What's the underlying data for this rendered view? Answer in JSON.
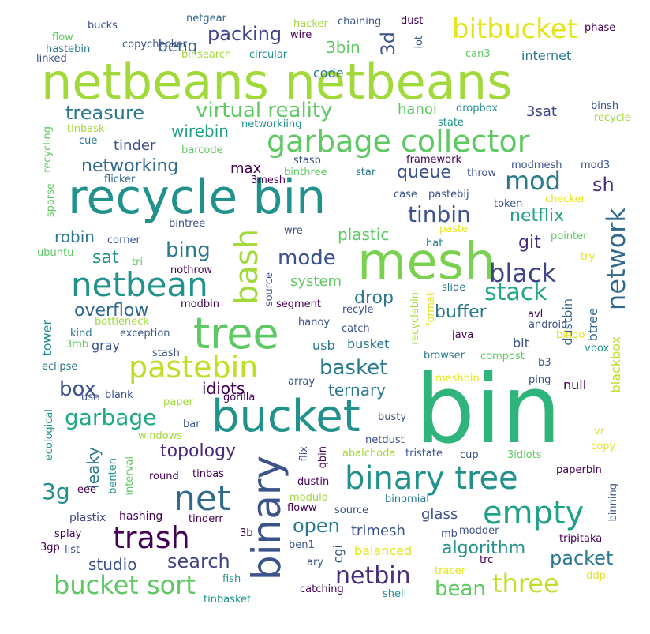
{
  "colors": {
    "background": "#ffffff",
    "palette": {
      "yellow_green": "#a2d93a",
      "green": "#5ec962",
      "teal_green": "#2fb47c",
      "teal": "#21918c",
      "blue": "#3b528b",
      "purple": "#440154"
    }
  },
  "words": [
    {
      "text": "netbeans netbeans",
      "color": "#a2d93a"
    },
    {
      "text": "bin",
      "color": "#2fb47c"
    },
    {
      "text": "recycle bin",
      "color": "#21918c"
    },
    {
      "text": "mesh",
      "color": "#7ad151"
    },
    {
      "text": "tree",
      "color": "#5ec962"
    },
    {
      "text": "bucket",
      "color": "#21918c"
    },
    {
      "text": "binary",
      "color": "#3b528b"
    },
    {
      "text": "binary tree",
      "color": "#21918c"
    },
    {
      "text": "netbean",
      "color": "#21918c"
    },
    {
      "text": "garbage collector",
      "color": "#5ec962"
    },
    {
      "text": "bitbucket",
      "color": "#e5e419"
    },
    {
      "text": "pastebin",
      "color": "#bddf26"
    },
    {
      "text": "net",
      "color": "#31688e"
    },
    {
      "text": "empty",
      "color": "#1fa187"
    },
    {
      "text": "bash",
      "color": "#a2d93a"
    },
    {
      "text": "trash",
      "color": "#440154"
    },
    {
      "text": "bucket sort",
      "color": "#5ec962"
    },
    {
      "text": "network",
      "color": "#31688e"
    },
    {
      "text": "three",
      "color": "#bddf26"
    },
    {
      "text": "black",
      "color": "#414487"
    },
    {
      "text": "stack",
      "color": "#22a884"
    },
    {
      "text": "mod",
      "color": "#2a788e"
    },
    {
      "text": "netbin",
      "color": "#472d7b"
    },
    {
      "text": "virtual reality",
      "color": "#5ec962"
    },
    {
      "text": "basket",
      "color": "#2a788e"
    },
    {
      "text": "garbage",
      "color": "#22a884"
    },
    {
      "text": "mode",
      "color": "#3b528b"
    },
    {
      "text": "tinbin",
      "color": "#3b528b"
    },
    {
      "text": "bean",
      "color": "#5ec962"
    },
    {
      "text": "packet",
      "color": "#2a788e"
    },
    {
      "text": "topology",
      "color": "#482878"
    },
    {
      "text": "packing",
      "color": "#414487"
    },
    {
      "text": "treasure",
      "color": "#2a788e"
    },
    {
      "text": "networking",
      "color": "#31688e"
    },
    {
      "text": "bing",
      "color": "#2a788e"
    },
    {
      "text": "git",
      "color": "#472d7b"
    },
    {
      "text": "netflix",
      "color": "#1fa187"
    },
    {
      "text": "box",
      "color": "#3b528b"
    },
    {
      "text": "3g",
      "color": "#21918c"
    },
    {
      "text": "search",
      "color": "#414487"
    },
    {
      "text": "open",
      "color": "#2a788e"
    },
    {
      "text": "algorithm",
      "color": "#21918c"
    },
    {
      "text": "studio",
      "color": "#3b528b"
    },
    {
      "text": "overflow",
      "color": "#31688e"
    },
    {
      "text": "drop",
      "color": "#2a788e"
    },
    {
      "text": "buffer",
      "color": "#2a788e"
    },
    {
      "text": "sh",
      "color": "#472d7b"
    },
    {
      "text": "queue",
      "color": "#3b528b"
    },
    {
      "text": "robin",
      "color": "#2a788e"
    },
    {
      "text": "sat",
      "color": "#21918c"
    },
    {
      "text": "plastic",
      "color": "#5ec962"
    },
    {
      "text": "system",
      "color": "#5ec962"
    },
    {
      "text": "idiots",
      "color": "#440154"
    },
    {
      "text": "ternary",
      "color": "#2a788e"
    },
    {
      "text": "wirebin",
      "color": "#1fa187"
    },
    {
      "text": "tinder",
      "color": "#3b528b"
    },
    {
      "text": "max",
      "color": "#440154"
    },
    {
      "text": "3d",
      "color": "#3b528b"
    },
    {
      "text": "3bin",
      "color": "#5ec962"
    },
    {
      "text": "benq",
      "color": "#31688e"
    },
    {
      "text": "hanoi",
      "color": "#5ec962"
    },
    {
      "text": "3sat",
      "color": "#414487"
    },
    {
      "text": "code",
      "color": "#2a788e"
    },
    {
      "text": "internet",
      "color": "#2a788e"
    },
    {
      "text": "leaky",
      "color": "#2a788e"
    },
    {
      "text": "glass",
      "color": "#3b528b"
    },
    {
      "text": "trimesh",
      "color": "#3b528b"
    },
    {
      "text": "balanced",
      "color": "#e5e419"
    },
    {
      "text": "cgi",
      "color": "#3b528b"
    },
    {
      "text": "dustbin",
      "color": "#31688e"
    },
    {
      "text": "blackbox",
      "color": "#bddf26"
    },
    {
      "text": "btree",
      "color": "#31688e"
    },
    {
      "text": "busket",
      "color": "#2a788e"
    },
    {
      "text": "usb",
      "color": "#2a788e"
    },
    {
      "text": "bit",
      "color": "#3b528b"
    },
    {
      "text": "gray",
      "color": "#3b528b"
    },
    {
      "text": "tower",
      "color": "#21918c"
    },
    {
      "text": "null",
      "color": "#440154"
    },
    {
      "text": "hashing",
      "color": "#440154"
    },
    {
      "text": "plastix",
      "color": "#414487"
    },
    {
      "text": "tinbask",
      "color": "#a2d93a"
    },
    {
      "text": "recycle",
      "color": "#a2d93a"
    },
    {
      "text": "netgear",
      "color": "#31688e"
    },
    {
      "text": "hacker",
      "color": "#a2d93a"
    },
    {
      "text": "chaining",
      "color": "#3b528b"
    },
    {
      "text": "dust",
      "color": "#440154"
    },
    {
      "text": "phase",
      "color": "#440154"
    },
    {
      "text": "bucks",
      "color": "#3b528b"
    },
    {
      "text": "flow",
      "color": "#5ec962"
    },
    {
      "text": "copychecker",
      "color": "#3b528b"
    },
    {
      "text": "wire",
      "color": "#440154"
    },
    {
      "text": "iot",
      "color": "#3b528b"
    },
    {
      "text": "hastebin",
      "color": "#2a788e"
    },
    {
      "text": "linked",
      "color": "#3b528b"
    },
    {
      "text": "binsearch",
      "color": "#a2d93a"
    },
    {
      "text": "circular",
      "color": "#21918c"
    },
    {
      "text": "can3",
      "color": "#5ec962"
    },
    {
      "text": "dropbox",
      "color": "#21918c"
    },
    {
      "text": "binsh",
      "color": "#3b528b"
    },
    {
      "text": "state",
      "color": "#21918c"
    },
    {
      "text": "networkiing",
      "color": "#21918c"
    },
    {
      "text": "framework",
      "color": "#440154"
    },
    {
      "text": "stasb",
      "color": "#3b528b"
    },
    {
      "text": "barcode",
      "color": "#5ec962"
    },
    {
      "text": "binthree",
      "color": "#5ec962"
    },
    {
      "text": "star",
      "color": "#2a788e"
    },
    {
      "text": "throw",
      "color": "#3b528b"
    },
    {
      "text": "modmesh",
      "color": "#3b528b"
    },
    {
      "text": "mod3",
      "color": "#3b528b"
    },
    {
      "text": "cue",
      "color": "#2a788e"
    },
    {
      "text": "flicker",
      "color": "#31688e"
    },
    {
      "text": "3mesh",
      "color": "#440154"
    },
    {
      "text": "recycling",
      "color": "#5ec962"
    },
    {
      "text": "sparse",
      "color": "#5ec962"
    },
    {
      "text": "case",
      "color": "#3b528b"
    },
    {
      "text": "pastebij",
      "color": "#3b528b"
    },
    {
      "text": "token",
      "color": "#3b528b"
    },
    {
      "text": "checker",
      "color": "#e5e419"
    },
    {
      "text": "bintree",
      "color": "#3b528b"
    },
    {
      "text": "wre",
      "color": "#3b528b"
    },
    {
      "text": "paste",
      "color": "#e5e419"
    },
    {
      "text": "hat",
      "color": "#2a788e"
    },
    {
      "text": "pointer",
      "color": "#5ec962"
    },
    {
      "text": "corner",
      "color": "#3b528b"
    },
    {
      "text": "tri",
      "color": "#5ec962"
    },
    {
      "text": "try",
      "color": "#e5e419"
    },
    {
      "text": "ubuntu",
      "color": "#5ec962"
    },
    {
      "text": "nothrow",
      "color": "#440154"
    },
    {
      "text": "source",
      "color": "#3b528b"
    },
    {
      "text": "segment",
      "color": "#440154"
    },
    {
      "text": "recyclebin",
      "color": "#a2d93a"
    },
    {
      "text": "format",
      "color": "#e5e419"
    },
    {
      "text": "slide",
      "color": "#2a788e"
    },
    {
      "text": "kind",
      "color": "#2a788e"
    },
    {
      "text": "bottleneck",
      "color": "#a2d93a"
    },
    {
      "text": "modbin",
      "color": "#440154"
    },
    {
      "text": "exception",
      "color": "#3b528b"
    },
    {
      "text": "hanoy",
      "color": "#3b528b"
    },
    {
      "text": "recyle",
      "color": "#3b528b"
    },
    {
      "text": "avl",
      "color": "#440154"
    },
    {
      "text": "android",
      "color": "#3b528b"
    },
    {
      "text": "bingo",
      "color": "#e5e419"
    },
    {
      "text": "vbox",
      "color": "#21918c"
    },
    {
      "text": "3mb",
      "color": "#5ec962"
    },
    {
      "text": "stash",
      "color": "#3b528b"
    },
    {
      "text": "catch",
      "color": "#3b528b"
    },
    {
      "text": "java",
      "color": "#440154"
    },
    {
      "text": "browser",
      "color": "#2a788e"
    },
    {
      "text": "compost",
      "color": "#5ec962"
    },
    {
      "text": "b3",
      "color": "#3b528b"
    },
    {
      "text": "eclipse",
      "color": "#2a788e"
    },
    {
      "text": "use",
      "color": "#3b528b"
    },
    {
      "text": "blank",
      "color": "#3b528b"
    },
    {
      "text": "array",
      "color": "#3b528b"
    },
    {
      "text": "ping",
      "color": "#3b528b"
    },
    {
      "text": "meshbin",
      "color": "#e5e419"
    },
    {
      "text": "paper",
      "color": "#a2d93a"
    },
    {
      "text": "gorilla",
      "color": "#440154"
    },
    {
      "text": "busty",
      "color": "#3b528b"
    },
    {
      "text": "ecological",
      "color": "#21918c"
    },
    {
      "text": "bar",
      "color": "#3b528b"
    },
    {
      "text": "windows",
      "color": "#a2d93a"
    },
    {
      "text": "netdust",
      "color": "#3b528b"
    },
    {
      "text": "vr",
      "color": "#e5e419"
    },
    {
      "text": "flix",
      "color": "#3b528b"
    },
    {
      "text": "qbin",
      "color": "#440154"
    },
    {
      "text": "abalchoda",
      "color": "#a2d93a"
    },
    {
      "text": "tristate",
      "color": "#3b528b"
    },
    {
      "text": "cup",
      "color": "#3b528b"
    },
    {
      "text": "3idiots",
      "color": "#5ec962"
    },
    {
      "text": "copy",
      "color": "#e5e419"
    },
    {
      "text": "benten",
      "color": "#21918c"
    },
    {
      "text": "round",
      "color": "#440154"
    },
    {
      "text": "tinbas",
      "color": "#440154"
    },
    {
      "text": "dustin",
      "color": "#440154"
    },
    {
      "text": "paperbin",
      "color": "#440154"
    },
    {
      "text": "interval",
      "color": "#5ec962"
    },
    {
      "text": "modulo",
      "color": "#a2d93a"
    },
    {
      "text": "source",
      "color": "#3b528b"
    },
    {
      "text": "binomial",
      "color": "#2a788e"
    },
    {
      "text": "eee",
      "color": "#440154"
    },
    {
      "text": "tinderr",
      "color": "#440154"
    },
    {
      "text": "floww",
      "color": "#440154"
    },
    {
      "text": "binning",
      "color": "#3b528b"
    },
    {
      "text": "splay",
      "color": "#440154"
    },
    {
      "text": "3b",
      "color": "#440154"
    },
    {
      "text": "modder",
      "color": "#3b528b"
    },
    {
      "text": "tripitaka",
      "color": "#440154"
    },
    {
      "text": "3gp",
      "color": "#440154"
    },
    {
      "text": "list",
      "color": "#3b528b"
    },
    {
      "text": "ben1",
      "color": "#3b528b"
    },
    {
      "text": "mb",
      "color": "#3b528b"
    },
    {
      "text": "ary",
      "color": "#3b528b"
    },
    {
      "text": "tracer",
      "color": "#e5e419"
    },
    {
      "text": "trc",
      "color": "#440154"
    },
    {
      "text": "ddp",
      "color": "#e5e419"
    },
    {
      "text": "fish",
      "color": "#21918c"
    },
    {
      "text": "catching",
      "color": "#440154"
    },
    {
      "text": "shell",
      "color": "#21918c"
    },
    {
      "text": "tinbasket",
      "color": "#21918c"
    }
  ]
}
